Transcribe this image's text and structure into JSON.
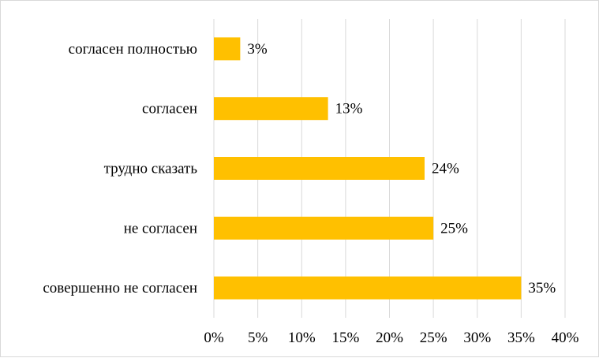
{
  "chart_data": {
    "type": "bar",
    "orientation": "horizontal",
    "categories": [
      "совершенно не согласен",
      "не согласен",
      "трудно сказать",
      "согласен",
      "согласен полностью"
    ],
    "values": [
      35,
      25,
      24,
      13,
      3
    ],
    "data_labels": [
      "35%",
      "25%",
      "24%",
      "13%",
      "3%"
    ],
    "xlim": [
      0,
      40
    ],
    "x_ticks": [
      0,
      5,
      10,
      15,
      20,
      25,
      30,
      35,
      40
    ],
    "x_tick_labels": [
      "0%",
      "5%",
      "10%",
      "15%",
      "20%",
      "25%",
      "30%",
      "35%",
      "40%"
    ],
    "grid": "vertical",
    "legend": "none",
    "title": "",
    "xlabel": "",
    "ylabel": "",
    "colors": {
      "bar": "#ffc000",
      "grid": "#d9d9d9",
      "text": "#000000"
    }
  }
}
